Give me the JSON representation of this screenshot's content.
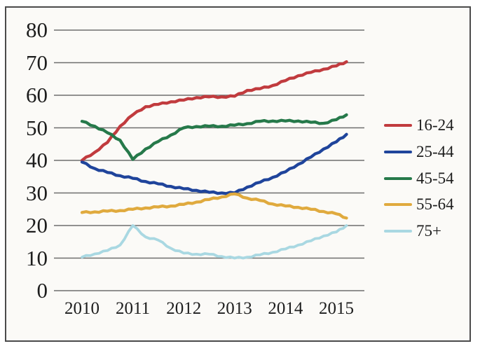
{
  "window": {
    "background": "#ffffff",
    "frame_border_color": "#4b4b4b",
    "plot_background": "#fbfaf7"
  },
  "chart_data": {
    "type": "line",
    "title": "",
    "xlabel": "",
    "ylabel": "",
    "grid": "horizontal-only",
    "gridline_color": "#6e6e6e",
    "text_color": "#1d1d1d",
    "legend_position": "right-middle",
    "ylim": [
      0,
      80
    ],
    "y_ticks": [
      0,
      10,
      20,
      30,
      40,
      50,
      60,
      70,
      80
    ],
    "x_ticks": [
      2010,
      2011,
      2012,
      2013,
      2014,
      2015
    ],
    "x": [
      2010.0,
      2010.25,
      2010.5,
      2010.75,
      2011.0,
      2011.25,
      2011.5,
      2011.75,
      2012.0,
      2012.25,
      2012.5,
      2012.75,
      2013.0,
      2013.25,
      2013.5,
      2013.75,
      2014.0,
      2014.25,
      2014.5,
      2014.75,
      2015.0,
      2015.2
    ],
    "series": [
      {
        "name": "16-24",
        "color": "#c13b3e",
        "values": [
          40,
          42.5,
          45.5,
          50.5,
          54,
          56.5,
          57.2,
          58,
          58.5,
          59.3,
          59.5,
          59.5,
          59.7,
          61.5,
          62,
          63,
          64.5,
          66,
          67,
          68,
          69,
          70.3
        ]
      },
      {
        "name": "25-44",
        "color": "#1f449b",
        "values": [
          39.5,
          37.5,
          36.3,
          35.3,
          34.5,
          33.5,
          32.8,
          32,
          31.3,
          30.8,
          30.2,
          30,
          30,
          31.8,
          33.3,
          34.8,
          36.5,
          38.8,
          41,
          43.5,
          45.7,
          48
        ]
      },
      {
        "name": "45-54",
        "color": "#26794a",
        "values": [
          52,
          50.5,
          48.5,
          46.2,
          40.3,
          43.5,
          45.8,
          47.8,
          50,
          50.4,
          50.5,
          50.5,
          50.8,
          51.3,
          52,
          52.1,
          52.1,
          52.1,
          51.7,
          51.4,
          52.5,
          54
        ]
      },
      {
        "name": "55-64",
        "color": "#e0aa3e",
        "values": [
          24,
          24.2,
          24.4,
          24.6,
          25,
          25.4,
          25.7,
          26,
          26.5,
          27.2,
          28,
          28.8,
          29.7,
          28.4,
          27.7,
          26.6,
          26,
          25.6,
          25,
          24.3,
          23.6,
          22.3
        ]
      },
      {
        "name": "75+",
        "color": "#a9d8e2",
        "values": [
          10.3,
          11.3,
          12.3,
          14,
          20,
          16.5,
          15.5,
          13,
          11.5,
          11.2,
          11.2,
          10.5,
          10,
          10.3,
          11,
          11.8,
          12.8,
          14,
          15.3,
          16.8,
          18,
          20
        ]
      }
    ]
  }
}
